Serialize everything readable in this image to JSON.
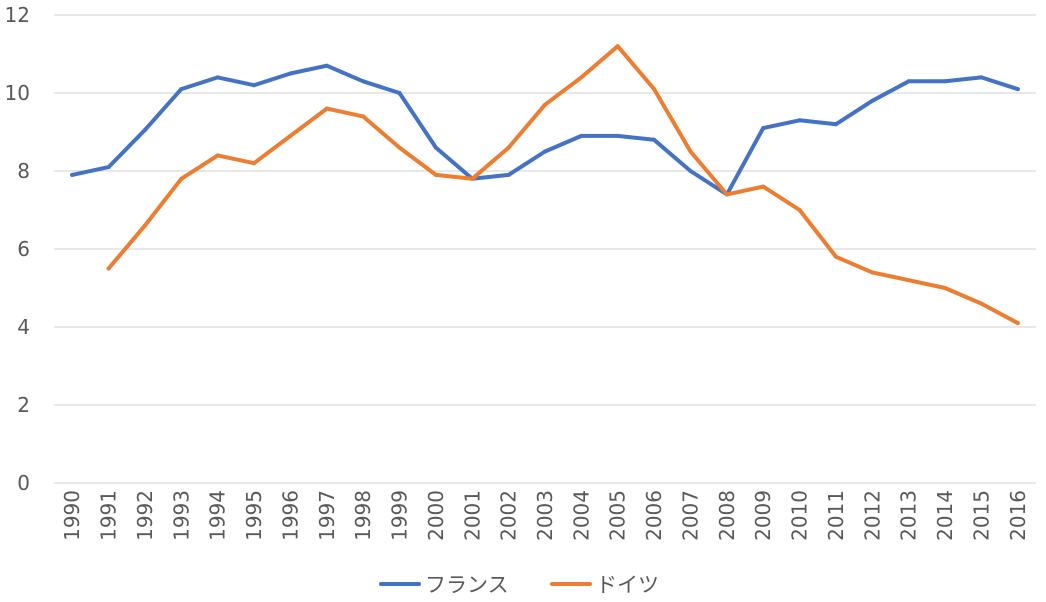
{
  "chart_data": {
    "type": "line",
    "title": "",
    "xlabel": "",
    "ylabel": "",
    "ylim": [
      0,
      12
    ],
    "yticks": [
      0,
      2,
      4,
      6,
      8,
      10,
      12
    ],
    "grid": true,
    "legend_position": "bottom",
    "categories": [
      "1990",
      "1991",
      "1992",
      "1993",
      "1994",
      "1995",
      "1996",
      "1997",
      "1998",
      "1999",
      "2000",
      "2001",
      "2002",
      "2003",
      "2004",
      "2005",
      "2006",
      "2007",
      "2008",
      "2009",
      "2010",
      "2011",
      "2012",
      "2013",
      "2014",
      "2015",
      "2016"
    ],
    "series": [
      {
        "name": "フランス",
        "color": "#4472C4",
        "values": [
          7.9,
          8.1,
          9.05,
          10.1,
          10.4,
          10.2,
          10.5,
          10.7,
          10.3,
          10.0,
          8.6,
          7.8,
          7.9,
          8.5,
          8.9,
          8.9,
          8.8,
          8.0,
          7.4,
          9.1,
          9.3,
          9.2,
          9.8,
          10.3,
          10.3,
          10.4,
          10.1
        ]
      },
      {
        "name": "ドイツ",
        "color": "#ED7D31",
        "values": [
          null,
          5.5,
          6.6,
          7.8,
          8.4,
          8.2,
          8.9,
          9.6,
          9.4,
          8.6,
          7.9,
          7.8,
          8.6,
          9.7,
          10.4,
          11.2,
          10.1,
          8.5,
          7.4,
          7.6,
          7.0,
          5.8,
          5.4,
          5.2,
          5.0,
          4.6,
          4.1
        ]
      }
    ]
  }
}
